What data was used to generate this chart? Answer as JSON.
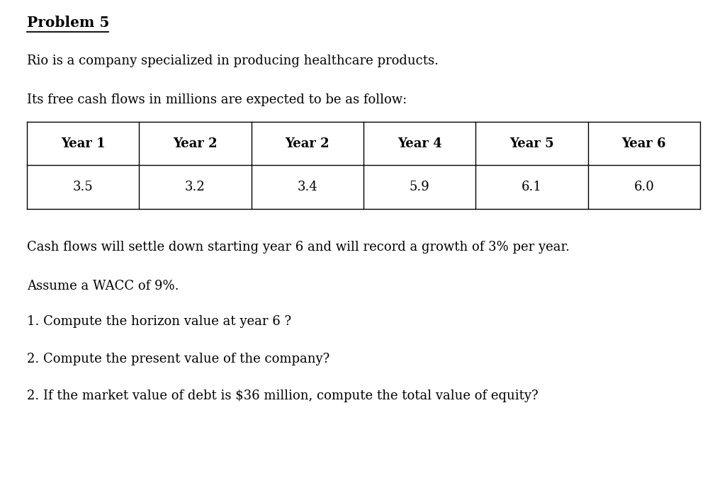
{
  "title": "Problem 5",
  "line1": "Rio is a company specialized in producing healthcare products.",
  "line2": "Its free cash flows in millions are expected to be as follow:",
  "table_headers": [
    "Year 1",
    "Year 2",
    "Year 2",
    "Year 4",
    "Year 5",
    "Year 6"
  ],
  "table_values": [
    "3.5",
    "3.2",
    "3.4",
    "5.9",
    "6.1",
    "6.0"
  ],
  "line3": "Cash flows will settle down starting year 6 and will record a growth of 3% per year.",
  "line4": "Assume a WACC of 9%.",
  "q1": "1. Compute the horizon value at year 6 ?",
  "q2": "2. Compute the present value of the company?",
  "q3": "2. If the market value of debt is $36 million, compute the total value of equity?",
  "bg_color": "#ffffff",
  "text_color": "#000000",
  "font_family": "serif",
  "title_fontsize": 14.5,
  "body_fontsize": 13.0,
  "table_fontsize": 13.0,
  "fig_width": 10.26,
  "fig_height": 6.82,
  "dpi": 100
}
